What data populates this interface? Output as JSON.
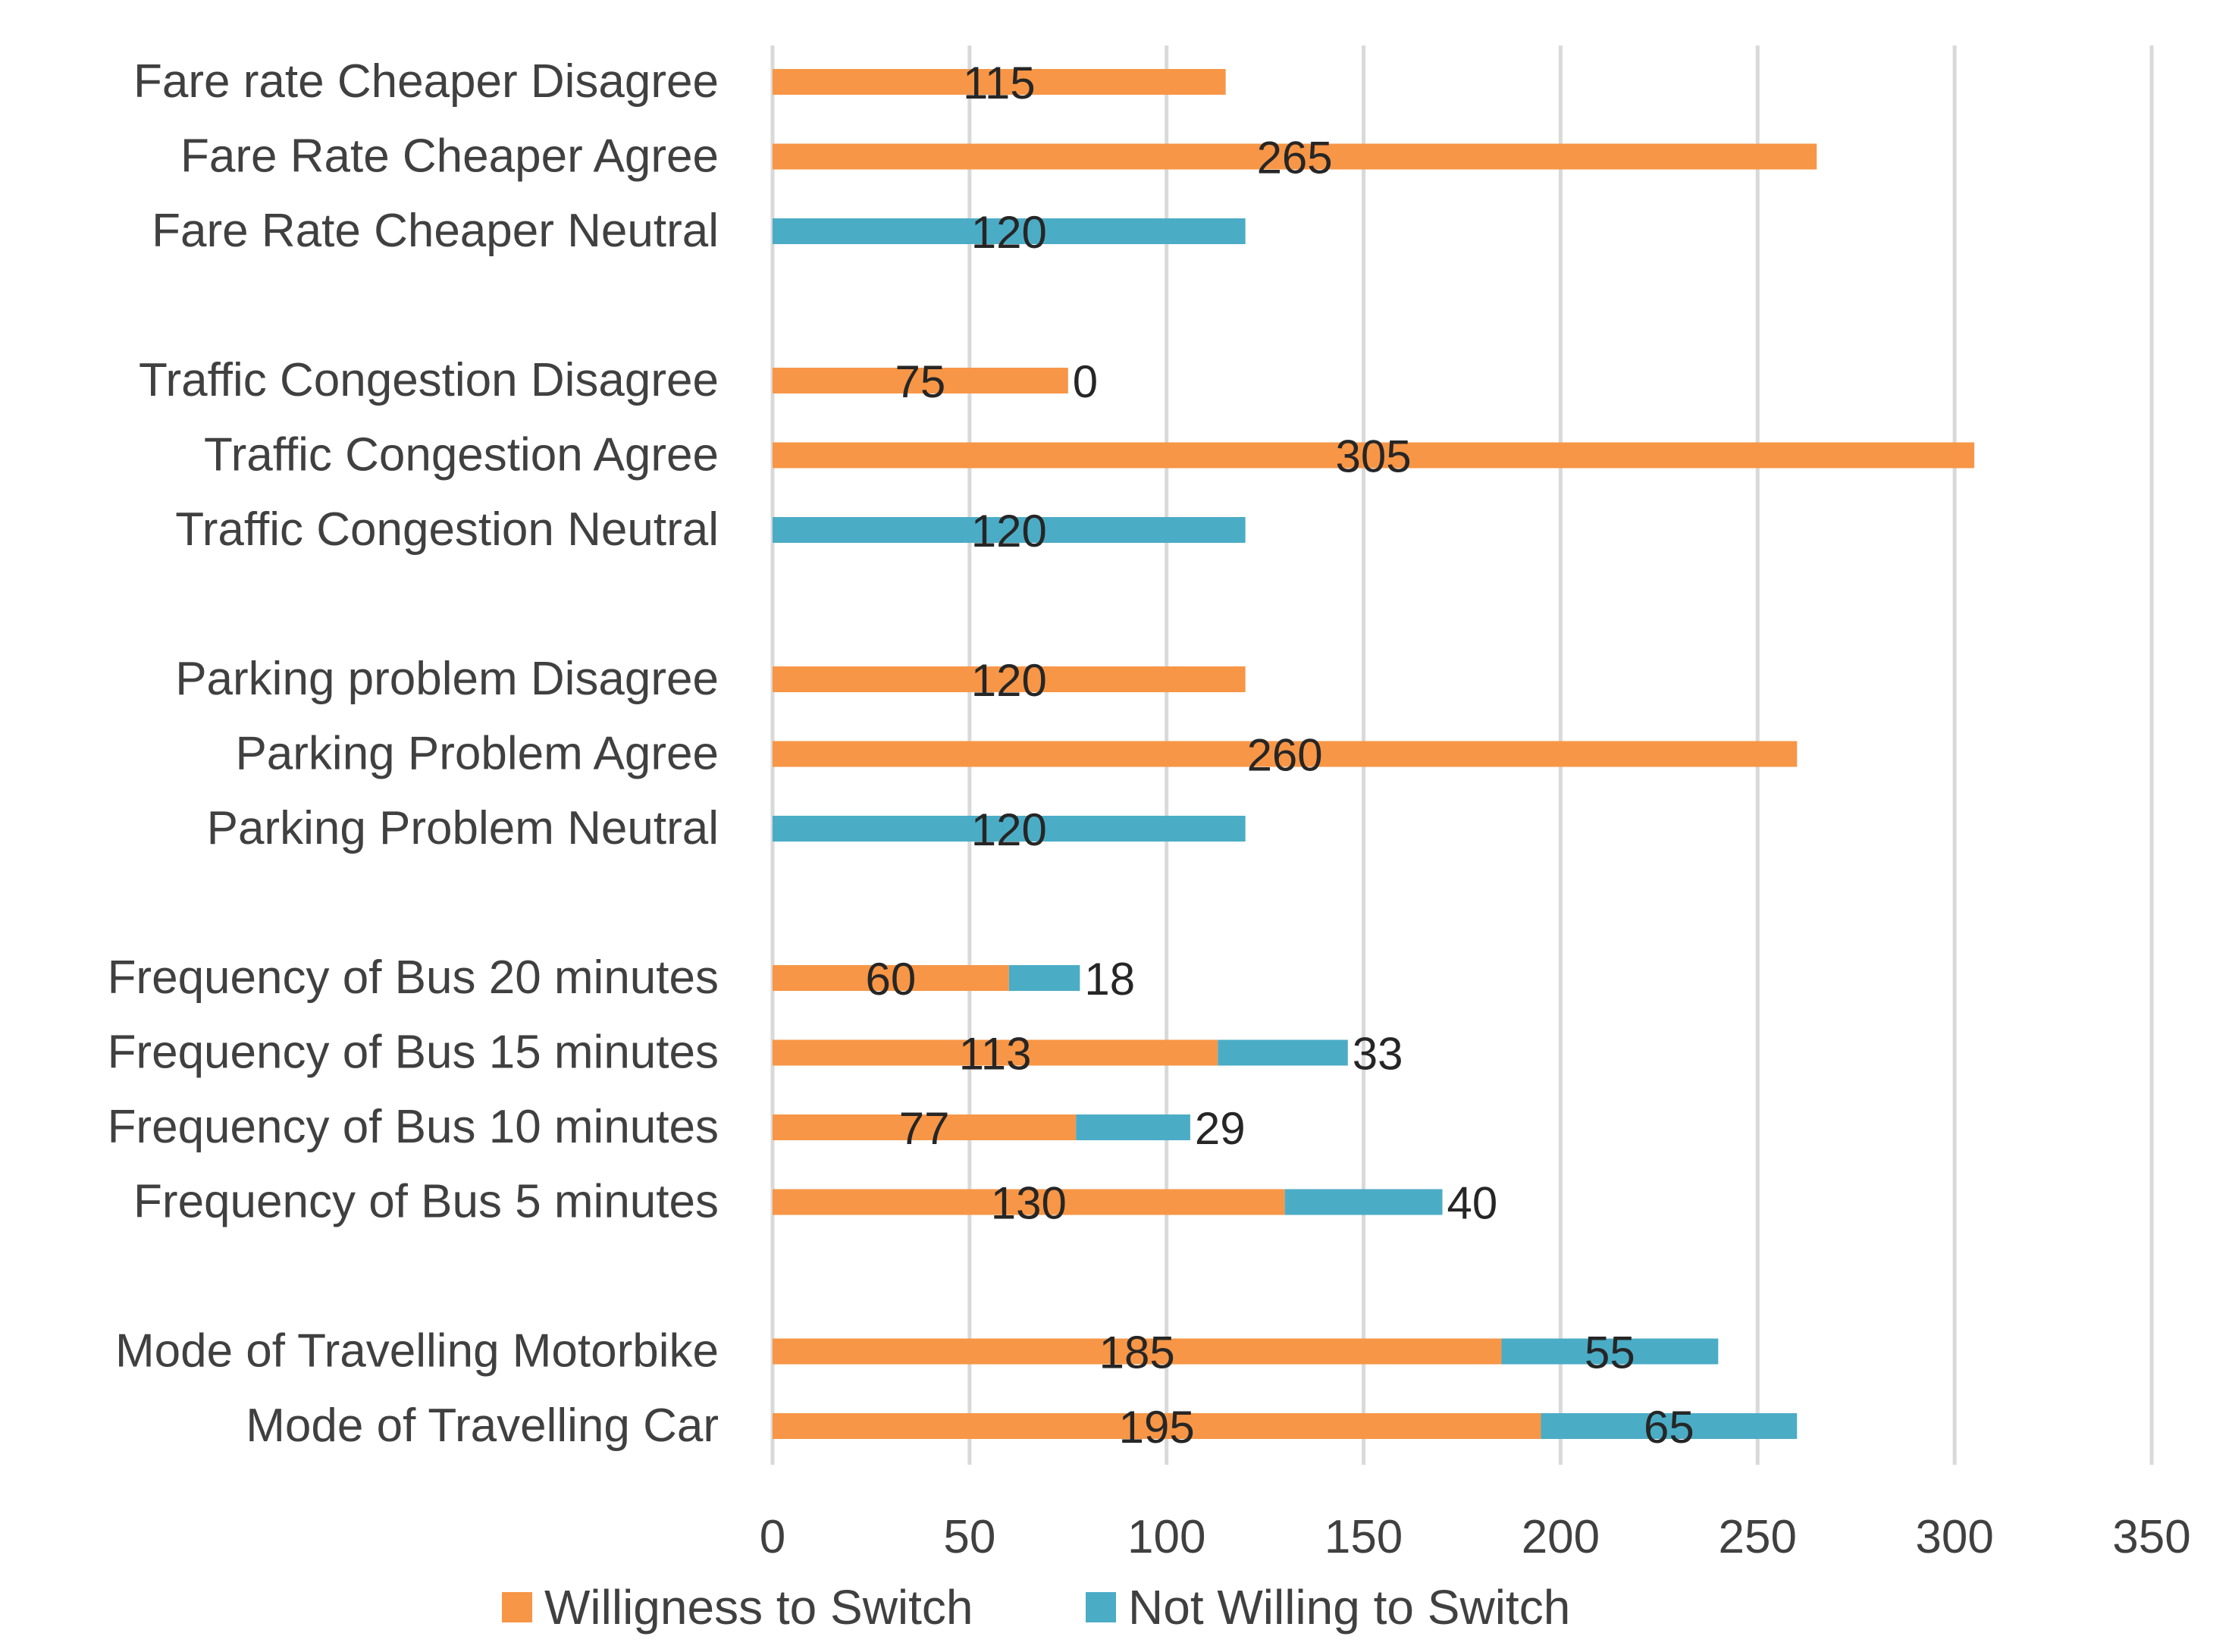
{
  "chart_data": {
    "type": "bar",
    "orientation": "horizontal",
    "stacked": true,
    "title": "",
    "xlabel": "",
    "ylabel": "",
    "xlim": [
      0,
      350
    ],
    "x_ticks": [
      0,
      50,
      100,
      150,
      200,
      250,
      300,
      350
    ],
    "grid": true,
    "legend_position": "bottom",
    "colors": {
      "willing": "#F79646",
      "not_willing": "#4BACC6"
    },
    "series": [
      {
        "name": "Willigness to Switch",
        "key": "willing"
      },
      {
        "name": "Not Willing to Switch",
        "key": "not_willing"
      }
    ],
    "categories": [
      "Fare rate Cheaper Disagree",
      "Fare Rate Cheaper Agree",
      "Fare Rate Cheaper Neutral",
      "",
      "Traffic Congestion Disagree",
      "Traffic Congestion Agree",
      "Traffic Congestion Neutral",
      "",
      "Parking problem Disagree",
      "Parking Problem Agree",
      "Parking Problem Neutral",
      "",
      "Frequency of Bus 20 minutes",
      "Frequency of Bus 15 minutes",
      "Frequency of Bus 10 minutes",
      "Frequency of Bus 5 minutes",
      "",
      "Mode of Travelling Motorbike",
      "Mode of Travelling Car"
    ],
    "rows": [
      {
        "willing": 115,
        "willing_label": "115"
      },
      {
        "willing": 265,
        "willing_label": "265"
      },
      {
        "not_willing": 120,
        "not_willing_label": "120"
      },
      {},
      {
        "willing": 75,
        "willing_label": "75",
        "not_willing": 0,
        "not_willing_label": "0"
      },
      {
        "willing": 305,
        "willing_label": "305"
      },
      {
        "not_willing": 120,
        "not_willing_label": "120"
      },
      {},
      {
        "willing": 120,
        "willing_label": "120"
      },
      {
        "willing": 260,
        "willing_label": "260"
      },
      {
        "not_willing": 120,
        "not_willing_label": "120"
      },
      {},
      {
        "willing": 60,
        "willing_label": "60",
        "not_willing": 18,
        "not_willing_label": "18"
      },
      {
        "willing": 113,
        "willing_label": "113",
        "not_willing": 33,
        "not_willing_label": "33"
      },
      {
        "willing": 77,
        "willing_label": "77",
        "not_willing": 29,
        "not_willing_label": "29"
      },
      {
        "willing": 130,
        "willing_label": "130",
        "not_willing": 40,
        "not_willing_label": "40"
      },
      {},
      {
        "willing": 185,
        "willing_label": "185",
        "not_willing": 55,
        "not_willing_label": "55"
      },
      {
        "willing": 195,
        "willing_label": "195",
        "not_willing": 65,
        "not_willing_label": "65"
      }
    ]
  }
}
